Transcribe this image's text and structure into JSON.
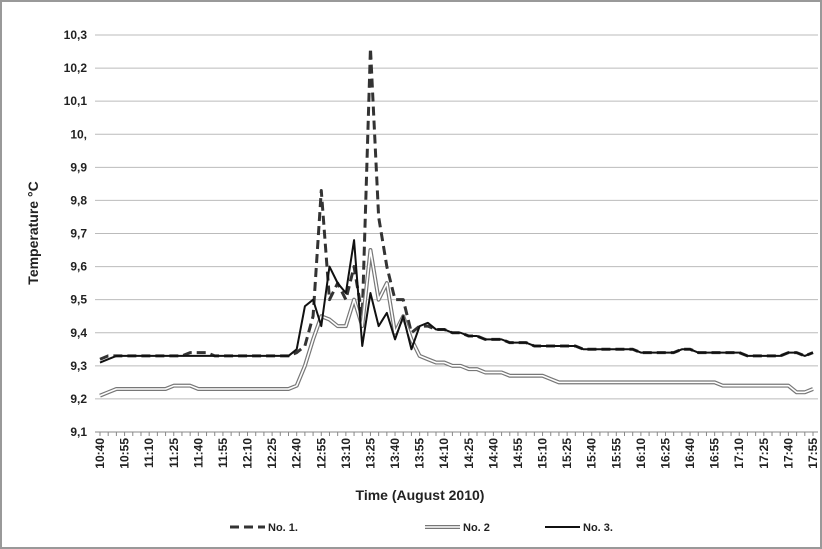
{
  "chart_data": {
    "type": "line",
    "x_label": "Time (August 2010)",
    "y_label": "Temperature °C",
    "categories": [
      "10:40",
      null,
      null,
      "10:55",
      null,
      null,
      "11:10",
      null,
      null,
      "11:25",
      null,
      null,
      "11:40",
      null,
      null,
      "11:55",
      null,
      null,
      "12:10",
      null,
      null,
      "12:25",
      null,
      null,
      "12:40",
      null,
      null,
      "12:55",
      null,
      null,
      "13:10",
      null,
      null,
      "13:25",
      null,
      null,
      "13:40",
      null,
      null,
      "13:55",
      null,
      null,
      "14:10",
      null,
      null,
      "14:25",
      null,
      null,
      "14:40",
      null,
      null,
      "14:55",
      null,
      null,
      "15:10",
      null,
      null,
      "15:25",
      null,
      null,
      "15:40",
      null,
      null,
      "15:55",
      null,
      null,
      "16:10",
      null,
      null,
      "16:25",
      null,
      null,
      "16:40",
      null,
      null,
      "16:55",
      null,
      null,
      "17:10",
      null,
      null,
      "17:25",
      null,
      null,
      "17:40",
      null,
      null,
      "17:55"
    ],
    "series": [
      {
        "name": "No. 1.",
        "color": "#333333",
        "style": "dashed",
        "values": [
          9.32,
          9.33,
          9.33,
          9.33,
          9.33,
          9.33,
          9.33,
          9.33,
          9.33,
          9.33,
          9.33,
          9.34,
          9.34,
          9.34,
          9.33,
          9.33,
          9.33,
          9.33,
          9.33,
          9.33,
          9.33,
          9.33,
          9.33,
          9.33,
          9.34,
          9.36,
          9.45,
          9.83,
          9.5,
          9.55,
          9.5,
          9.6,
          9.45,
          10.26,
          9.75,
          9.6,
          9.5,
          9.5,
          9.4,
          9.42,
          9.42,
          9.41,
          9.41,
          9.4,
          9.4,
          9.39,
          9.39,
          9.38,
          9.38,
          9.38,
          9.37,
          9.37,
          9.37,
          9.36,
          9.36,
          9.36,
          9.36,
          9.36,
          9.36,
          9.35,
          9.35,
          9.35,
          9.35,
          9.35,
          9.35,
          9.35,
          9.34,
          9.34,
          9.34,
          9.34,
          9.34,
          9.35,
          9.35,
          9.34,
          9.34,
          9.34,
          9.34,
          9.34,
          9.34,
          9.33,
          9.33,
          9.33,
          9.33,
          9.33,
          9.34,
          9.34,
          9.33,
          9.34
        ]
      },
      {
        "name": "No. 2",
        "color": "#777777",
        "style": "double",
        "values": [
          9.21,
          9.22,
          9.23,
          9.23,
          9.23,
          9.23,
          9.23,
          9.23,
          9.23,
          9.24,
          9.24,
          9.24,
          9.23,
          9.23,
          9.23,
          9.23,
          9.23,
          9.23,
          9.23,
          9.23,
          9.23,
          9.23,
          9.23,
          9.23,
          9.24,
          9.3,
          9.38,
          9.45,
          9.44,
          9.42,
          9.42,
          9.5,
          9.42,
          9.65,
          9.5,
          9.55,
          9.4,
          9.45,
          9.38,
          9.33,
          9.32,
          9.31,
          9.31,
          9.3,
          9.3,
          9.29,
          9.29,
          9.28,
          9.28,
          9.28,
          9.27,
          9.27,
          9.27,
          9.27,
          9.27,
          9.26,
          9.25,
          9.25,
          9.25,
          9.25,
          9.25,
          9.25,
          9.25,
          9.25,
          9.25,
          9.25,
          9.25,
          9.25,
          9.25,
          9.25,
          9.25,
          9.25,
          9.25,
          9.25,
          9.25,
          9.25,
          9.24,
          9.24,
          9.24,
          9.24,
          9.24,
          9.24,
          9.24,
          9.24,
          9.24,
          9.22,
          9.22,
          9.23
        ]
      },
      {
        "name": "No. 3.",
        "color": "#111111",
        "style": "solid",
        "values": [
          9.31,
          9.32,
          9.33,
          9.33,
          9.33,
          9.33,
          9.33,
          9.33,
          9.33,
          9.33,
          9.33,
          9.33,
          9.33,
          9.33,
          9.33,
          9.33,
          9.33,
          9.33,
          9.33,
          9.33,
          9.33,
          9.33,
          9.33,
          9.33,
          9.35,
          9.48,
          9.5,
          9.42,
          9.6,
          9.55,
          9.52,
          9.68,
          9.36,
          9.52,
          9.42,
          9.46,
          9.38,
          9.45,
          9.35,
          9.42,
          9.43,
          9.41,
          9.41,
          9.4,
          9.4,
          9.39,
          9.39,
          9.38,
          9.38,
          9.38,
          9.37,
          9.37,
          9.37,
          9.36,
          9.36,
          9.36,
          9.36,
          9.36,
          9.36,
          9.35,
          9.35,
          9.35,
          9.35,
          9.35,
          9.35,
          9.35,
          9.34,
          9.34,
          9.34,
          9.34,
          9.34,
          9.35,
          9.35,
          9.34,
          9.34,
          9.34,
          9.34,
          9.34,
          9.34,
          9.33,
          9.33,
          9.33,
          9.33,
          9.33,
          9.34,
          9.34,
          9.33,
          9.34
        ]
      }
    ],
    "ylim": [
      9.1,
      10.3
    ],
    "yticks": [
      {
        "value": 9.1,
        "label": "9,1"
      },
      {
        "value": 9.2,
        "label": "9,2"
      },
      {
        "value": 9.3,
        "label": "9,3"
      },
      {
        "value": 9.4,
        "label": "9,4"
      },
      {
        "value": 9.5,
        "label": "9,5"
      },
      {
        "value": 9.6,
        "label": "9,6"
      },
      {
        "value": 9.7,
        "label": "9,7"
      },
      {
        "value": 9.8,
        "label": "9,8"
      },
      {
        "value": 9.9,
        "label": "9,9"
      },
      {
        "value": 10,
        "label": "10,"
      },
      {
        "value": 10.1,
        "label": "10,1"
      },
      {
        "value": 10.2,
        "label": "10,2"
      },
      {
        "value": 10.3,
        "label": "10,3"
      }
    ],
    "grid": true
  }
}
